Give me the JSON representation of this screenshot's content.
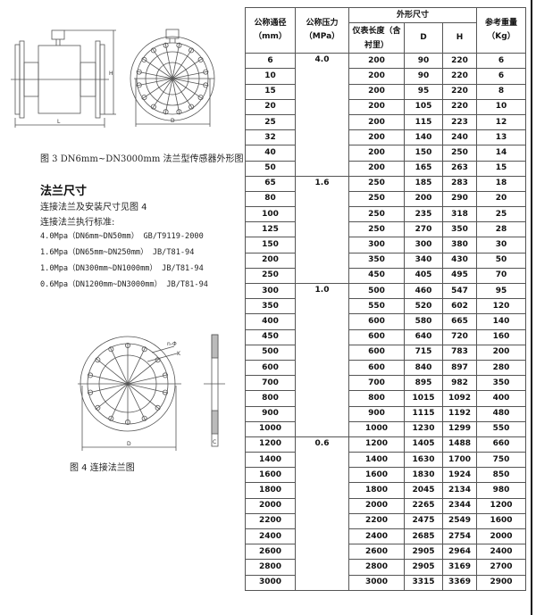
{
  "fig3": {
    "caption": "图 3    DN6mm~DN3000mm 法兰型传感器外形图",
    "label_L": "L",
    "label_H": "H",
    "label_D": "D"
  },
  "flange": {
    "title": "法兰尺寸",
    "line1": "连接法兰及安装尺寸见图 4",
    "line2": "连接法兰执行标准:",
    "standards": [
      "4.0Mpa（DN6mm~DN50mm）   GB/T9119-2000",
      "1.6Mpa（DN65mm~DN250mm）   JB/T81-94",
      "1.0Mpa（DN300mm~DN1000mm）   JB/T81-94",
      "0.6Mpa（DN1200mm~DN3000mm）   JB/T81-94"
    ]
  },
  "fig4": {
    "caption": "图 4   连接法兰图",
    "label_n": "n-Φ",
    "label_K": "K",
    "label_D": "D",
    "label_C": "C"
  },
  "table": {
    "headers": {
      "dn": "公称通径",
      "dn_unit": "（mm）",
      "pn": "公称压力",
      "pn_unit": "（MPa）",
      "dims": "外形尺寸",
      "length": "仪表长度（含衬里）",
      "d": "D",
      "h": "H",
      "weight": "参考重量",
      "weight_unit": "（Kg）"
    },
    "groups": [
      {
        "pn": "4.0",
        "rows": [
          [
            "6",
            "200",
            "90",
            "220",
            "6"
          ],
          [
            "10",
            "200",
            "90",
            "220",
            "6"
          ],
          [
            "15",
            "200",
            "95",
            "220",
            "8"
          ],
          [
            "20",
            "200",
            "105",
            "220",
            "10"
          ],
          [
            "25",
            "200",
            "115",
            "223",
            "12"
          ],
          [
            "32",
            "200",
            "140",
            "240",
            "13"
          ],
          [
            "40",
            "200",
            "150",
            "250",
            "14"
          ],
          [
            "50",
            "200",
            "165",
            "263",
            "15"
          ]
        ]
      },
      {
        "pn": "1.6",
        "rows": [
          [
            "65",
            "250",
            "185",
            "283",
            "18"
          ],
          [
            "80",
            "250",
            "200",
            "290",
            "20"
          ],
          [
            "100",
            "250",
            "235",
            "318",
            "25"
          ],
          [
            "125",
            "250",
            "270",
            "350",
            "28"
          ],
          [
            "150",
            "300",
            "300",
            "380",
            "30"
          ],
          [
            "200",
            "350",
            "340",
            "430",
            "50"
          ],
          [
            "250",
            "450",
            "405",
            "495",
            "70"
          ]
        ]
      },
      {
        "pn": "1.0",
        "rows": [
          [
            "300",
            "500",
            "460",
            "547",
            "95"
          ],
          [
            "350",
            "550",
            "520",
            "602",
            "120"
          ],
          [
            "400",
            "600",
            "580",
            "665",
            "140"
          ],
          [
            "450",
            "600",
            "640",
            "720",
            "160"
          ],
          [
            "500",
            "600",
            "715",
            "783",
            "200"
          ],
          [
            "600",
            "600",
            "840",
            "897",
            "280"
          ],
          [
            "700",
            "700",
            "895",
            "982",
            "350"
          ],
          [
            "800",
            "800",
            "1015",
            "1092",
            "400"
          ],
          [
            "900",
            "900",
            "1115",
            "1192",
            "480"
          ],
          [
            "1000",
            "1000",
            "1230",
            "1299",
            "550"
          ]
        ]
      },
      {
        "pn": "0.6",
        "rows": [
          [
            "1200",
            "1200",
            "1405",
            "1488",
            "660"
          ],
          [
            "1400",
            "1400",
            "1630",
            "1700",
            "750"
          ],
          [
            "1600",
            "1600",
            "1830",
            "1924",
            "850"
          ],
          [
            "1800",
            "1800",
            "2045",
            "2134",
            "980"
          ],
          [
            "2000",
            "2000",
            "2265",
            "2344",
            "1200"
          ],
          [
            "2200",
            "2200",
            "2475",
            "2549",
            "1600"
          ],
          [
            "2400",
            "2400",
            "2685",
            "2754",
            "2000"
          ],
          [
            "2600",
            "2600",
            "2905",
            "2964",
            "2400"
          ],
          [
            "2800",
            "2800",
            "2905",
            "3169",
            "2700"
          ],
          [
            "3000",
            "3000",
            "3315",
            "3369",
            "2900"
          ]
        ]
      }
    ]
  }
}
